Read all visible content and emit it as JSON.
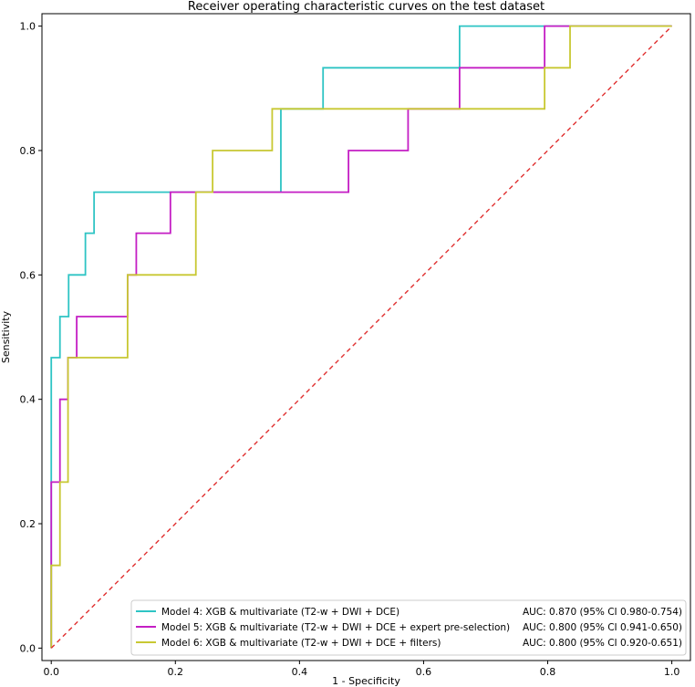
{
  "chart_data": {
    "type": "line",
    "title": "Receiver operating characteristic curves on the test dataset",
    "xlabel": "1 - Specificity",
    "ylabel": "Sensitivity",
    "xlim": [
      -0.015,
      1.03
    ],
    "ylim": [
      -0.02,
      1.02
    ],
    "xticks": [
      0.0,
      0.2,
      0.4,
      0.6,
      0.8,
      1.0
    ],
    "yticks": [
      0.0,
      0.2,
      0.4,
      0.6,
      0.8,
      1.0
    ],
    "xtick_labels": [
      "0.0",
      "0.2",
      "0.4",
      "0.6",
      "0.8",
      "1.0"
    ],
    "ytick_labels": [
      "0.0",
      "0.2",
      "0.4",
      "0.6",
      "0.8",
      "1.0"
    ],
    "grid": false,
    "legend_position": "lower-right",
    "series": [
      {
        "name": "Model 4: XGB & multivariate (T2-w + DWI + DCE)",
        "auc_label": "AUC: 0.870 (95% CI 0.980-0.754)",
        "color": "#2ec4c4",
        "x": [
          0,
          0,
          0.014,
          0.014,
          0.028,
          0.028,
          0.055,
          0.055,
          0.069,
          0.069,
          0.37,
          0.37,
          0.438,
          0.438,
          0.658,
          0.658,
          1.0
        ],
        "y": [
          0,
          0.467,
          0.467,
          0.533,
          0.533,
          0.6,
          0.6,
          0.667,
          0.667,
          0.733,
          0.733,
          0.867,
          0.867,
          0.933,
          0.933,
          1.0,
          1.0
        ]
      },
      {
        "name": "Model 5: XGB & multivariate (T2-w + DWI + DCE + expert pre-selection)",
        "auc_label": "AUC: 0.800 (95% CI 0.941-0.650)",
        "color": "#c41ec4",
        "x": [
          0,
          0,
          0.014,
          0.014,
          0.027,
          0.027,
          0.041,
          0.041,
          0.123,
          0.123,
          0.137,
          0.137,
          0.192,
          0.192,
          0.479,
          0.479,
          0.575,
          0.575,
          0.658,
          0.658,
          0.795,
          0.795,
          1.0
        ],
        "y": [
          0,
          0.267,
          0.267,
          0.4,
          0.4,
          0.467,
          0.467,
          0.533,
          0.533,
          0.6,
          0.6,
          0.667,
          0.667,
          0.733,
          0.733,
          0.8,
          0.8,
          0.867,
          0.867,
          0.933,
          0.933,
          1.0,
          1.0
        ]
      },
      {
        "name": "Model 6: XGB & multivariate (T2-w + DWI + DCE + filters)",
        "auc_label": "AUC: 0.800 (95% CI 0.920-0.651)",
        "color": "#c8c832",
        "x": [
          0,
          0,
          0.014,
          0.014,
          0.027,
          0.027,
          0.123,
          0.123,
          0.233,
          0.233,
          0.26,
          0.26,
          0.356,
          0.356,
          0.795,
          0.795,
          0.836,
          0.836,
          1.0
        ],
        "y": [
          0,
          0.133,
          0.133,
          0.267,
          0.267,
          0.467,
          0.467,
          0.6,
          0.6,
          0.733,
          0.733,
          0.8,
          0.8,
          0.867,
          0.867,
          0.933,
          0.933,
          1.0,
          1.0
        ]
      }
    ],
    "reference_line": {
      "x": [
        0,
        1
      ],
      "y": [
        0,
        1
      ],
      "color": "#e03030",
      "style": "dashed"
    }
  }
}
